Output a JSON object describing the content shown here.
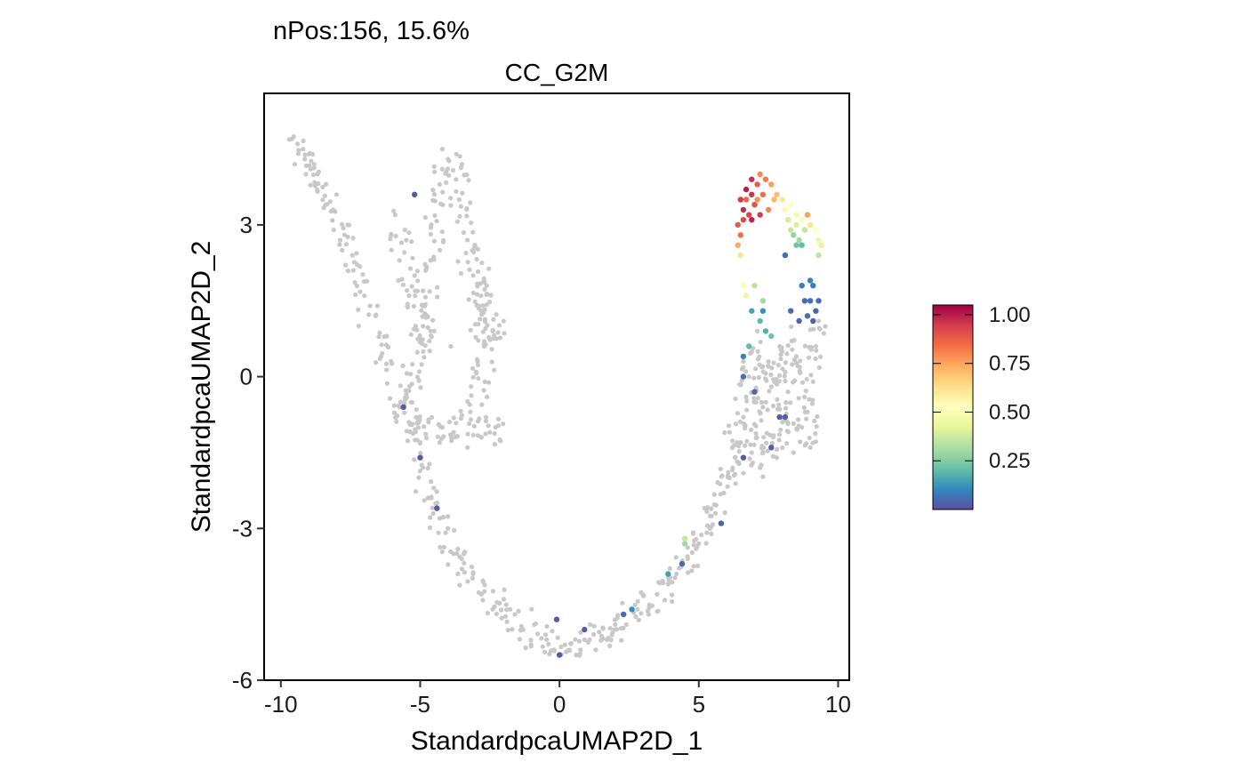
{
  "chart_data": {
    "type": "scatter",
    "subtitle": "nPos:156, 15.6%",
    "title": "CC_G2M",
    "xlabel": "StandardpcaUMAP2D_1",
    "ylabel": "StandardpcaUMAP2D_2",
    "xlim": [
      -10.6,
      10.4
    ],
    "ylim": [
      -6.0,
      5.6
    ],
    "xticks": [
      -10,
      -5,
      0,
      5,
      10
    ],
    "yticks": [
      -6,
      -3,
      0,
      3
    ],
    "xtick_labels": [
      "-10",
      "-5",
      "0",
      "5",
      "10"
    ],
    "ytick_labels": [
      "-6",
      "-3",
      "0",
      "3"
    ],
    "grid": false,
    "negative_color": "#c8c8c8",
    "colorbar": {
      "position": "right",
      "min": 0.0,
      "max": 1.05,
      "ticks": [
        0.25,
        0.5,
        0.75,
        1.0
      ],
      "tick_labels": [
        "0.25",
        "0.50",
        "0.75",
        "1.00"
      ],
      "colors": [
        "#5e4fa2",
        "#3288bd",
        "#66c2a5",
        "#abdda4",
        "#e6f598",
        "#ffffbf",
        "#fee08b",
        "#fdae61",
        "#f46d43",
        "#d53e4f",
        "#9e0142"
      ]
    },
    "negative_paths": [
      [
        [
          -9.6,
          4.6
        ],
        [
          -9.0,
          4.3
        ],
        [
          -8.6,
          3.9
        ],
        [
          -8.2,
          3.3
        ],
        [
          -7.7,
          2.6
        ],
        [
          -7.1,
          1.8
        ],
        [
          -6.6,
          1.1
        ],
        [
          -6.1,
          0.3
        ],
        [
          -5.7,
          -0.4
        ],
        [
          -5.3,
          -1.2
        ],
        [
          -4.9,
          -1.9
        ],
        [
          -4.5,
          -2.6
        ],
        [
          -4.0,
          -3.2
        ],
        [
          -3.5,
          -3.7
        ],
        [
          -2.9,
          -4.1
        ],
        [
          -2.3,
          -4.5
        ],
        [
          -1.6,
          -4.9
        ],
        [
          -0.9,
          -5.1
        ],
        [
          -0.2,
          -5.3
        ],
        [
          0.5,
          -5.4
        ],
        [
          1.2,
          -5.3
        ],
        [
          1.8,
          -5.1
        ],
        [
          2.5,
          -4.8
        ],
        [
          3.1,
          -4.5
        ],
        [
          3.7,
          -4.2
        ],
        [
          4.3,
          -3.8
        ],
        [
          4.8,
          -3.4
        ],
        [
          5.3,
          -3.0
        ],
        [
          5.7,
          -2.5
        ],
        [
          6.0,
          -2.0
        ],
        [
          6.2,
          -1.5
        ],
        [
          6.3,
          -1.0
        ]
      ],
      [
        [
          -4.1,
          4.4
        ],
        [
          -4.3,
          3.6
        ],
        [
          -4.5,
          2.8
        ],
        [
          -4.6,
          2.1
        ],
        [
          -4.8,
          1.4
        ],
        [
          -5.0,
          0.7
        ],
        [
          -5.3,
          0.1
        ],
        [
          -5.5,
          -0.5
        ],
        [
          -5.2,
          -0.9
        ],
        [
          -4.6,
          -1.1
        ],
        [
          -4.0,
          -1.0
        ],
        [
          -3.3,
          -0.9
        ],
        [
          -2.6,
          -1.0
        ],
        [
          -2.2,
          -1.2
        ]
      ],
      [
        [
          -3.7,
          4.3
        ],
        [
          -3.6,
          3.6
        ],
        [
          -3.4,
          2.9
        ],
        [
          -3.2,
          2.3
        ],
        [
          -3.0,
          1.7
        ],
        [
          -2.8,
          1.1
        ],
        [
          -2.6,
          0.5
        ],
        [
          -2.8,
          0.0
        ],
        [
          -3.2,
          -0.4
        ]
      ],
      [
        [
          -5.8,
          3.1
        ],
        [
          -5.6,
          2.5
        ],
        [
          -5.4,
          1.8
        ],
        [
          -5.1,
          1.2
        ],
        [
          -4.6,
          0.7
        ]
      ],
      [
        [
          -3.0,
          2.1
        ],
        [
          -2.7,
          1.6
        ],
        [
          -2.4,
          1.0
        ],
        [
          -2.2,
          0.4
        ]
      ],
      [
        [
          6.6,
          -1.7
        ],
        [
          6.7,
          -0.9
        ],
        [
          6.7,
          -0.1
        ],
        [
          6.9,
          0.6
        ]
      ],
      [
        [
          7.3,
          -1.9
        ],
        [
          7.2,
          -1.1
        ],
        [
          7.3,
          -0.3
        ],
        [
          7.4,
          0.5
        ]
      ],
      [
        [
          8.1,
          -1.4
        ],
        [
          8.0,
          -0.6
        ],
        [
          8.1,
          0.2
        ],
        [
          8.4,
          0.9
        ]
      ],
      [
        [
          8.8,
          -1.3
        ],
        [
          8.9,
          -0.5
        ],
        [
          9.0,
          0.3
        ],
        [
          9.2,
          1.0
        ]
      ],
      [
        [
          6.7,
          -1.2
        ],
        [
          7.5,
          -1.4
        ],
        [
          8.3,
          -1.2
        ],
        [
          9.0,
          -1.0
        ]
      ],
      [
        [
          6.8,
          0.2
        ],
        [
          7.6,
          0.1
        ],
        [
          8.4,
          0.2
        ],
        [
          9.1,
          0.4
        ]
      ]
    ],
    "negative_points": [
      [
        -9.6,
        4.7
      ],
      [
        -9.4,
        4.6
      ],
      [
        -9.2,
        4.5
      ],
      [
        -9.0,
        4.4
      ],
      [
        -8.8,
        4.2
      ],
      [
        -9.5,
        4.2
      ],
      [
        -9.1,
        4.0
      ],
      [
        -8.7,
        3.7
      ],
      [
        -8.4,
        3.4
      ],
      [
        -8.1,
        2.9
      ],
      [
        -7.8,
        2.5
      ],
      [
        -7.4,
        2.1
      ],
      [
        -7.0,
        1.6
      ],
      [
        -6.6,
        1.2
      ],
      [
        -6.2,
        0.8
      ],
      [
        -4.2,
        4.5
      ],
      [
        -4.0,
        4.3
      ],
      [
        -3.7,
        4.4
      ],
      [
        -3.5,
        4.2
      ],
      [
        -4.3,
        3.8
      ],
      [
        -3.6,
        3.5
      ],
      [
        -4.6,
        3.0
      ],
      [
        -3.3,
        2.7
      ],
      [
        -4.8,
        2.1
      ],
      [
        -3.1,
        2.0
      ],
      [
        -2.9,
        1.4
      ],
      [
        -2.7,
        0.7
      ],
      [
        -2.4,
        0.9
      ],
      [
        -2.3,
        -1.0
      ],
      [
        -2.5,
        -1.1
      ],
      [
        -5.9,
        3.2
      ],
      [
        -5.5,
        2.7
      ],
      [
        -5.2,
        2.0
      ],
      [
        -4.9,
        1.4
      ],
      [
        -4.5,
        0.9
      ],
      [
        -3.9,
        0.6
      ],
      [
        -5.7,
        -0.5
      ],
      [
        -5.4,
        -0.9
      ],
      [
        -5.0,
        -1.3
      ],
      [
        -4.7,
        -0.9
      ],
      [
        -4.3,
        -1.3
      ],
      [
        -3.8,
        -1.1
      ],
      [
        -3.3,
        -1.4
      ],
      [
        -2.8,
        -1.2
      ],
      [
        -4.9,
        -1.8
      ],
      [
        -4.6,
        -2.4
      ],
      [
        -4.3,
        -2.8
      ],
      [
        -4.0,
        -3.0
      ],
      [
        -3.8,
        -3.5
      ],
      [
        -3.5,
        -3.8
      ],
      [
        -3.1,
        -3.9
      ],
      [
        -2.8,
        -4.3
      ],
      [
        -2.4,
        -4.6
      ],
      [
        -2.0,
        -4.4
      ],
      [
        -1.6,
        -4.7
      ],
      [
        -1.3,
        -5.0
      ],
      [
        -0.9,
        -4.9
      ],
      [
        -0.5,
        -5.1
      ],
      [
        -0.2,
        -5.4
      ],
      [
        0.2,
        -5.3
      ],
      [
        0.6,
        -5.5
      ],
      [
        0.9,
        -5.2
      ],
      [
        1.3,
        -5.4
      ],
      [
        1.7,
        -5.2
      ],
      [
        2.0,
        -4.9
      ],
      [
        2.4,
        -4.9
      ],
      [
        2.8,
        -4.6
      ],
      [
        3.2,
        -4.7
      ],
      [
        3.5,
        -4.3
      ],
      [
        3.9,
        -4.1
      ],
      [
        4.2,
        -3.9
      ],
      [
        4.6,
        -3.6
      ],
      [
        5.0,
        -3.3
      ],
      [
        5.4,
        -3.0
      ],
      [
        5.6,
        -2.7
      ],
      [
        5.9,
        -2.3
      ],
      [
        6.1,
        -2.0
      ],
      [
        6.3,
        -1.6
      ],
      [
        6.5,
        -1.3
      ],
      [
        6.6,
        -0.8
      ],
      [
        6.7,
        -0.4
      ],
      [
        6.8,
        0.0
      ],
      [
        6.9,
        0.5
      ],
      [
        7.1,
        0.9
      ],
      [
        7.3,
        -0.6
      ],
      [
        7.6,
        -0.2
      ],
      [
        7.8,
        -1.6
      ],
      [
        8.0,
        -0.9
      ],
      [
        8.2,
        -0.3
      ],
      [
        8.5,
        0.4
      ],
      [
        8.7,
        -1.0
      ],
      [
        8.9,
        -0.7
      ],
      [
        9.1,
        -0.1
      ],
      [
        9.2,
        0.6
      ],
      [
        9.3,
        1.1
      ],
      [
        7.5,
        0.3
      ],
      [
        7.9,
        0.6
      ],
      [
        6.9,
        -1.5
      ],
      [
        7.2,
        -1.8
      ],
      [
        8.4,
        -1.5
      ],
      [
        9.0,
        -1.4
      ],
      [
        6.1,
        -1.1
      ],
      [
        5.2,
        -2.6
      ],
      [
        4.8,
        -3.1
      ],
      [
        -1.0,
        -4.6
      ],
      [
        1.1,
        -4.9
      ],
      [
        -6.8,
        1.4
      ],
      [
        -7.2,
        1.0
      ],
      [
        -6.4,
        0.4
      ],
      [
        -7.6,
        3.0
      ],
      [
        -8.0,
        3.6
      ],
      [
        -3.2,
        -0.7
      ],
      [
        -2.6,
        -0.4
      ]
    ],
    "positive_points": [
      [
        6.5,
        3.5,
        0.95
      ],
      [
        6.6,
        3.3,
        0.98
      ],
      [
        6.7,
        3.7,
        1.0
      ],
      [
        6.8,
        3.2,
        0.93
      ],
      [
        6.9,
        3.9,
        0.97
      ],
      [
        7.0,
        3.4,
        0.9
      ],
      [
        7.1,
        3.8,
        0.88
      ],
      [
        7.2,
        4.0,
        0.8
      ],
      [
        7.3,
        3.6,
        0.84
      ],
      [
        7.4,
        3.9,
        0.82
      ],
      [
        7.5,
        3.3,
        0.8
      ],
      [
        7.6,
        3.8,
        0.76
      ],
      [
        7.7,
        3.5,
        0.72
      ],
      [
        7.8,
        3.6,
        0.7
      ],
      [
        6.4,
        3.0,
        0.88
      ],
      [
        6.5,
        2.8,
        0.84
      ],
      [
        6.4,
        2.6,
        0.74
      ],
      [
        6.5,
        2.4,
        0.62
      ],
      [
        6.6,
        3.1,
        0.92
      ],
      [
        6.7,
        3.5,
        0.86
      ],
      [
        6.9,
        3.1,
        0.99
      ],
      [
        7.2,
        3.2,
        0.95
      ],
      [
        6.9,
        3.6,
        0.96
      ],
      [
        7.1,
        3.5,
        0.78
      ],
      [
        8.0,
        3.5,
        0.62
      ],
      [
        8.1,
        3.3,
        0.55
      ],
      [
        8.3,
        3.4,
        0.52
      ],
      [
        8.5,
        3.2,
        0.48
      ],
      [
        8.7,
        3.1,
        0.5
      ],
      [
        8.9,
        3.2,
        0.76
      ],
      [
        9.0,
        3.0,
        0.62
      ],
      [
        9.2,
        2.9,
        0.52
      ],
      [
        9.3,
        2.7,
        0.45
      ],
      [
        9.4,
        2.6,
        0.42
      ],
      [
        9.3,
        2.4,
        0.35
      ],
      [
        8.2,
        3.1,
        0.38
      ],
      [
        8.3,
        2.9,
        0.36
      ],
      [
        8.4,
        2.8,
        0.28
      ],
      [
        8.5,
        2.6,
        0.22
      ],
      [
        8.7,
        2.6,
        0.2
      ],
      [
        8.5,
        3.0,
        0.4
      ],
      [
        8.8,
        2.9,
        0.35
      ],
      [
        8.1,
        2.4,
        0.05
      ],
      [
        8.6,
        2.7,
        0.3
      ],
      [
        9.0,
        1.9,
        0.1
      ],
      [
        9.1,
        1.8,
        0.08
      ],
      [
        9.0,
        1.5,
        0.06
      ],
      [
        9.2,
        1.3,
        0.04
      ],
      [
        9.3,
        1.5,
        0.05
      ],
      [
        8.9,
        1.2,
        0.06
      ],
      [
        8.7,
        1.8,
        0.09
      ],
      [
        8.8,
        1.5,
        0.05
      ],
      [
        6.6,
        1.8,
        0.5
      ],
      [
        6.7,
        1.6,
        0.45
      ],
      [
        7.0,
        1.8,
        0.34
      ],
      [
        7.3,
        1.5,
        0.3
      ],
      [
        7.2,
        1.1,
        0.2
      ],
      [
        7.4,
        0.9,
        0.18
      ],
      [
        7.6,
        0.8,
        0.22
      ],
      [
        6.8,
        0.6,
        0.2
      ],
      [
        6.6,
        0.4,
        0.1
      ],
      [
        6.6,
        0.0,
        0.06
      ],
      [
        7.0,
        -0.3,
        0.04
      ],
      [
        6.6,
        -1.6,
        0.03
      ],
      [
        7.9,
        -0.8,
        0.02
      ],
      [
        7.6,
        -1.4,
        0.02
      ],
      [
        8.1,
        -0.8,
        0.02
      ],
      [
        9.1,
        1.1,
        0.03
      ],
      [
        8.6,
        1.1,
        0.04
      ],
      [
        8.3,
        1.3,
        0.05
      ],
      [
        -5.2,
        3.6,
        0.02
      ],
      [
        -5.6,
        -0.6,
        0.02
      ],
      [
        -5.0,
        -1.6,
        0.02
      ],
      [
        -4.4,
        -2.6,
        0.02
      ],
      [
        -0.1,
        -4.8,
        0.02
      ],
      [
        0.9,
        -5.0,
        0.03
      ],
      [
        0.0,
        -5.5,
        0.02
      ],
      [
        2.3,
        -4.7,
        0.04
      ],
      [
        2.6,
        -4.6,
        0.12
      ],
      [
        3.9,
        -3.9,
        0.15
      ],
      [
        4.4,
        -3.7,
        0.05
      ],
      [
        4.5,
        -3.2,
        0.36
      ],
      [
        4.5,
        -3.3,
        0.3
      ],
      [
        5.8,
        -2.9,
        0.04
      ],
      [
        6.9,
        1.3,
        0.15
      ],
      [
        7.3,
        1.3,
        0.12
      ]
    ]
  }
}
